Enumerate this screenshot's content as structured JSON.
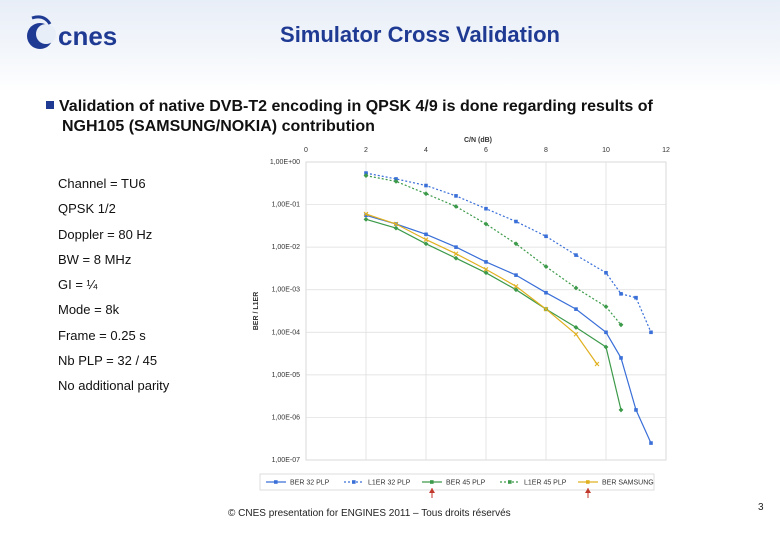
{
  "header": {
    "logo_text": "cnes",
    "title": "Simulator Cross Validation"
  },
  "bullet": {
    "line1": "Validation of native DVB-T2 encoding in QPSK 4/9 is done regarding results of",
    "line2": "NGH105 (SAMSUNG/NOKIA) contribution"
  },
  "params": [
    "Channel = TU6",
    "QPSK 1/2",
    "Doppler = 80 Hz",
    "BW = 8 MHz",
    "GI = ¼",
    "Mode = 8k",
    "Frame = 0.25 s",
    "Nb PLP = 32 / 45",
    "No additional parity"
  ],
  "footer": {
    "copyright": "© CNES presentation for ENGINES 2011 – Tous droits réservés",
    "page": "3"
  },
  "colors": {
    "title_blue": "#1f3a93",
    "ber32": "#3a6fd8",
    "l1er32": "#3a6fd8",
    "ber45": "#3c9a4a",
    "l1er45": "#3c9a4a",
    "samsung": "#e0b020",
    "arrow_red": "#c0392b"
  },
  "chart_data": {
    "type": "line",
    "xlabel": "C/N (dB)",
    "ylabel": "BER / L1ER",
    "xlim": [
      0,
      12
    ],
    "x_ticks": [
      "0",
      "2",
      "4",
      "6",
      "8",
      "10",
      "12"
    ],
    "ylim_exp": [
      -7,
      0
    ],
    "y_scale": "log",
    "y_ticks": [
      "1,00E+00",
      "1,00E-01",
      "1,00E-02",
      "1,00E-03",
      "1,00E-04",
      "1,00E-05",
      "1,00E-06",
      "1,00E-07"
    ],
    "grid": true,
    "legend_position": "bottom",
    "series": [
      {
        "name": "BER 32 PLP",
        "color": "#3a6fd8",
        "dash": "solid",
        "points": [
          [
            2,
            0.056
          ],
          [
            3,
            0.035
          ],
          [
            4,
            0.02
          ],
          [
            5,
            0.01
          ],
          [
            6,
            0.0045
          ],
          [
            7,
            0.0022
          ],
          [
            8,
            0.00085
          ],
          [
            9,
            0.00035
          ],
          [
            10,
            0.0001
          ],
          [
            10.5,
            2.5e-05
          ],
          [
            11,
            1.5e-06
          ],
          [
            11.5,
            2.5e-07
          ]
        ]
      },
      {
        "name": "L1ER 32 PLP",
        "color": "#3a6fd8",
        "dash": "dashed",
        "points": [
          [
            2,
            0.55
          ],
          [
            3,
            0.4
          ],
          [
            4,
            0.28
          ],
          [
            5,
            0.16
          ],
          [
            6,
            0.08
          ],
          [
            7,
            0.04
          ],
          [
            8,
            0.018
          ],
          [
            9,
            0.0065
          ],
          [
            10,
            0.0025
          ],
          [
            10.5,
            0.0008
          ],
          [
            11,
            0.00065
          ],
          [
            11.5,
            0.0001
          ]
        ]
      },
      {
        "name": "BER 45 PLP",
        "color": "#3c9a4a",
        "dash": "solid",
        "points": [
          [
            2,
            0.045
          ],
          [
            3,
            0.028
          ],
          [
            4,
            0.012
          ],
          [
            5,
            0.0055
          ],
          [
            6,
            0.0025
          ],
          [
            7,
            0.001
          ],
          [
            8,
            0.00035
          ],
          [
            9,
            0.00013
          ],
          [
            10,
            4.5e-05
          ],
          [
            10.5,
            1.5e-06
          ]
        ]
      },
      {
        "name": "L1ER 45 PLP",
        "color": "#3c9a4a",
        "dash": "dashed",
        "points": [
          [
            2,
            0.48
          ],
          [
            3,
            0.35
          ],
          [
            4,
            0.18
          ],
          [
            5,
            0.09
          ],
          [
            6,
            0.035
          ],
          [
            7,
            0.012
          ],
          [
            8,
            0.0035
          ],
          [
            9,
            0.0011
          ],
          [
            10,
            0.0004
          ],
          [
            10.5,
            0.00015
          ]
        ]
      },
      {
        "name": "BER SAMSUNG",
        "color": "#e0b020",
        "dash": "solid",
        "points": [
          [
            2,
            0.06
          ],
          [
            3,
            0.035
          ],
          [
            4,
            0.015
          ],
          [
            5,
            0.007
          ],
          [
            6,
            0.003
          ],
          [
            7,
            0.0012
          ],
          [
            8,
            0.00035
          ],
          [
            9,
            9e-05
          ],
          [
            9.7,
            1.8e-05
          ]
        ]
      }
    ]
  }
}
